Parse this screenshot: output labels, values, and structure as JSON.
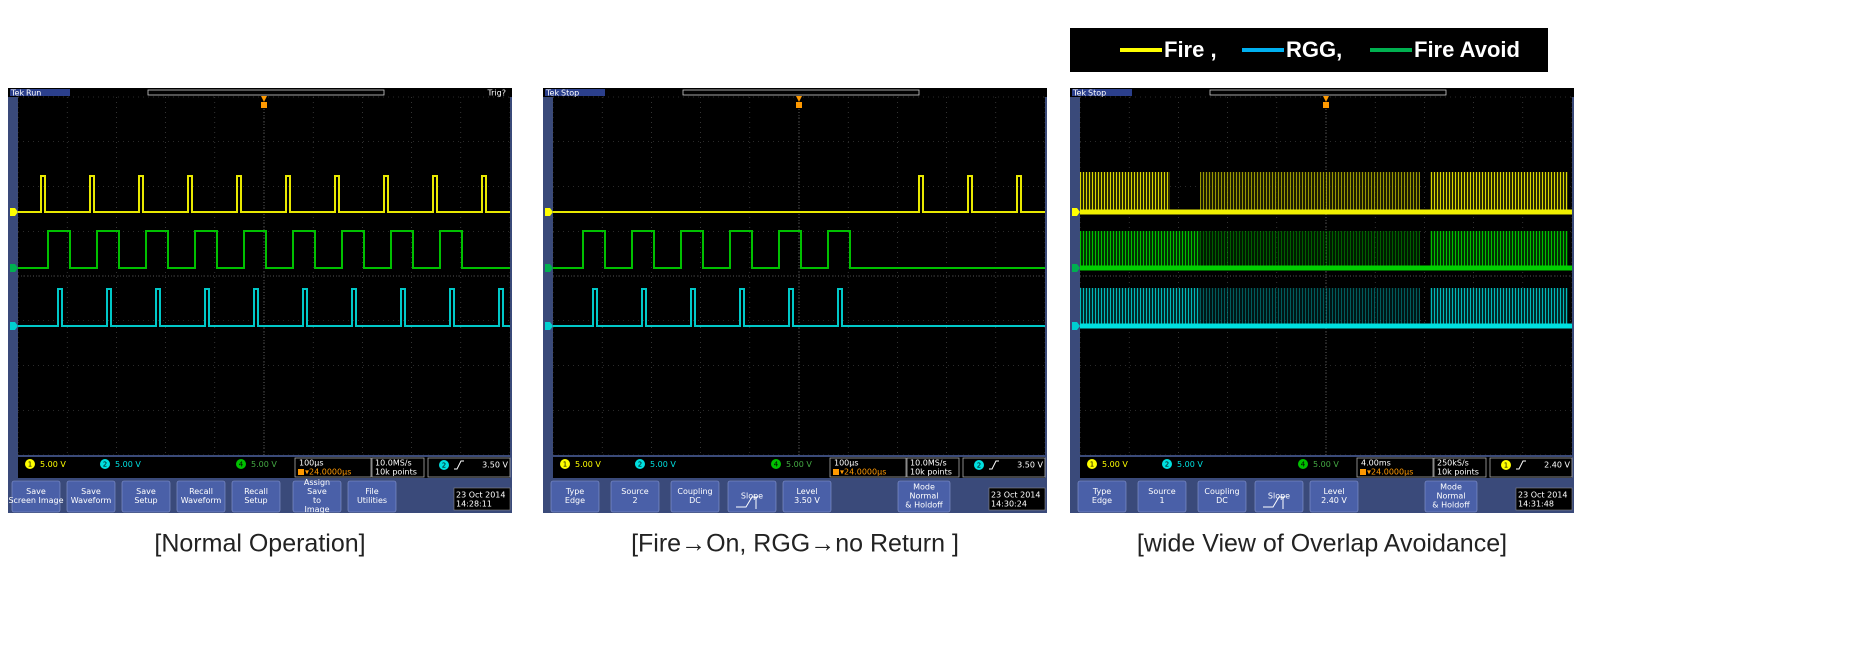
{
  "legend": [
    {
      "label": "Fire ,",
      "color": "#ffff00"
    },
    {
      "label": "RGG,",
      "color": "#00b0f0"
    },
    {
      "label": "Fire Avoid",
      "color": "#00b050"
    }
  ],
  "scopes": [
    {
      "brand": "Tek",
      "status": "Run",
      "trigger_state": "Trig?",
      "channels": [
        {
          "num": "1",
          "scale": "5.00 V"
        },
        {
          "num": "2",
          "scale": "5.00 V"
        },
        {
          "num": "4",
          "scale": "5.00 V"
        }
      ],
      "timebase": "100µs",
      "delay": "▾24.0000µs",
      "rate": "10.0MS/s",
      "points": "10k points",
      "trig_ch": "2",
      "trig_level": "3.50 V",
      "buttons": [
        [
          "Save",
          "Screen Image"
        ],
        [
          "Save",
          "Waveform"
        ],
        [
          "Save",
          "Setup"
        ],
        [
          "Recall",
          "Waveform"
        ],
        [
          "Recall",
          "Setup"
        ],
        [
          "Assign",
          "Save",
          "to",
          "Image"
        ],
        [
          "File",
          "Utilities"
        ]
      ],
      "date": "23 Oct 2014",
      "time": "14:28:11",
      "caption": "[Normal Operation]"
    },
    {
      "brand": "Tek",
      "status": "Stop",
      "channels": [
        {
          "num": "1",
          "scale": "5.00 V"
        },
        {
          "num": "2",
          "scale": "5.00 V"
        },
        {
          "num": "4",
          "scale": "5.00 V"
        }
      ],
      "timebase": "100µs",
      "delay": "▾24.0000µs",
      "rate": "10.0MS/s",
      "points": "10k points",
      "trig_ch": "2",
      "trig_level": "3.50 V",
      "buttons": [
        [
          "Type",
          "Edge"
        ],
        [
          "Source",
          "2"
        ],
        [
          "Coupling",
          "DC"
        ],
        [
          "Slope"
        ],
        [
          "Level",
          "3.50 V"
        ],
        [
          "Mode",
          "Normal",
          "& Holdoff"
        ]
      ],
      "date": "23 Oct 2014",
      "time": "14:30:24",
      "caption": "[Fire→On, RGG→no Return ]"
    },
    {
      "brand": "Tek",
      "status": "Stop",
      "channels": [
        {
          "num": "1",
          "scale": "5.00 V"
        },
        {
          "num": "2",
          "scale": "5.00 V"
        },
        {
          "num": "4",
          "scale": "5.00 V"
        }
      ],
      "timebase": "4.00ms",
      "delay": "▾24.0000µs",
      "rate": "250kS/s",
      "points": "10k points",
      "trig_ch": "1",
      "trig_level": "2.40 V",
      "buttons": [
        [
          "Type",
          "Edge"
        ],
        [
          "Source",
          "1"
        ],
        [
          "Coupling",
          "DC"
        ],
        [
          "Slope"
        ],
        [
          "Level",
          "2.40 V"
        ],
        [
          "Mode",
          "Normal",
          "& Holdoff"
        ]
      ],
      "date": "23 Oct 2014",
      "time": "14:31:48",
      "caption": "[wide View of Overlap Avoidance]"
    }
  ]
}
